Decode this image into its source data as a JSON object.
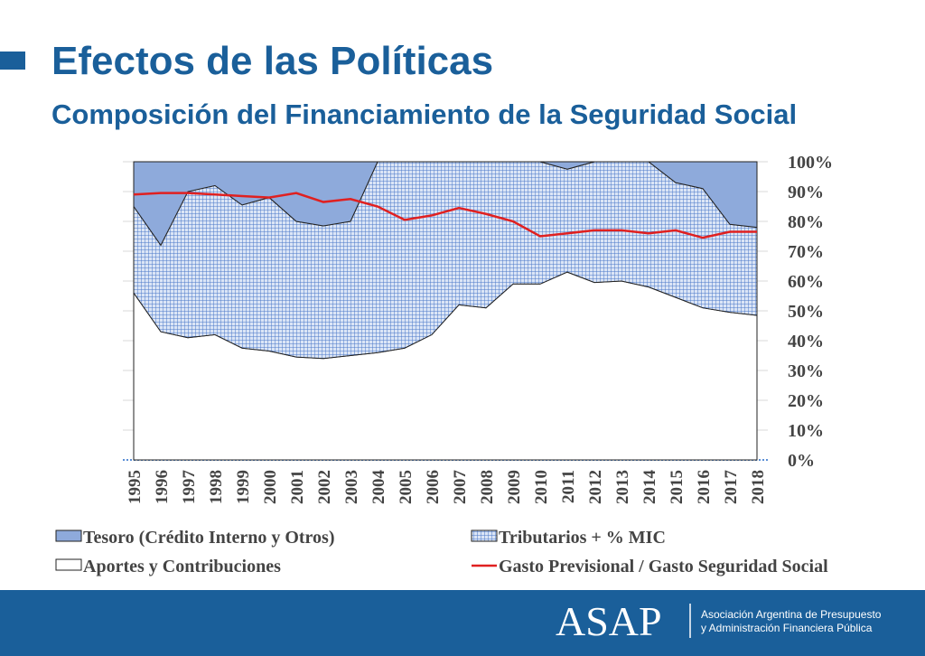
{
  "header": {
    "title": "Efectos de las Políticas",
    "subtitle": "Composición del Financiamiento de la Seguridad Social"
  },
  "chart_data": {
    "type": "stacked_area",
    "categories": [
      "1995",
      "1996",
      "1997",
      "1998",
      "1999",
      "2000",
      "2001",
      "2002",
      "2003",
      "2004",
      "2005",
      "2006",
      "2007",
      "2008",
      "2009",
      "2010",
      "2011",
      "2012",
      "2013",
      "2014",
      "2015",
      "2016",
      "2017",
      "2018"
    ],
    "series": [
      {
        "name": "Aportes y Contribuciones",
        "color": "#ffffff",
        "values": [
          56,
          43,
          41,
          42,
          37.5,
          36.5,
          34.5,
          34,
          35,
          36,
          37.5,
          42,
          52,
          51,
          59,
          59,
          63,
          59.5,
          60,
          58,
          54.5,
          51,
          49.5,
          48.5
        ]
      },
      {
        "name": "Tributarios + % MIC",
        "color": "#4a78c8",
        "hatch": true,
        "values": [
          29,
          29,
          49,
          50,
          48,
          51.5,
          45.5,
          44.5,
          45,
          64,
          62.5,
          58,
          48,
          49,
          41,
          41,
          34.5,
          40.5,
          40,
          42,
          38.5,
          40,
          29.5,
          29.5
        ]
      },
      {
        "name": "Tesoro (Crédito Interno y Otros)",
        "color": "#8eaadb",
        "values": [
          15,
          28,
          10,
          8,
          14.5,
          12,
          20,
          21.5,
          20,
          0,
          0,
          0,
          0,
          0,
          0,
          0,
          2.5,
          0,
          0,
          0,
          7,
          9,
          21,
          22
        ]
      }
    ],
    "line": {
      "name": "Gasto Previsional  / Gasto Seguridad Social",
      "color": "#e02020",
      "values": [
        89,
        89.5,
        89.5,
        89,
        88.5,
        88,
        89.5,
        86.5,
        87.5,
        85,
        80.5,
        82,
        84.5,
        82.5,
        80,
        75,
        76,
        77,
        77,
        76,
        77,
        74.5,
        76.5,
        76.5
      ]
    },
    "ylim": [
      0,
      100
    ],
    "yticks": [
      {
        "value": 0,
        "label": "0%"
      },
      {
        "value": 10,
        "label": "10%"
      },
      {
        "value": 20,
        "label": "20%"
      },
      {
        "value": 30,
        "label": "30%"
      },
      {
        "value": 40,
        "label": "40%"
      },
      {
        "value": 50,
        "label": "50%"
      },
      {
        "value": 60,
        "label": "60%"
      },
      {
        "value": 70,
        "label": "70%"
      },
      {
        "value": 80,
        "label": "80%"
      },
      {
        "value": 90,
        "label": "90%"
      },
      {
        "value": 100,
        "label": "100%"
      }
    ],
    "grid": true
  },
  "footer": {
    "logo": "ASAP",
    "line1": "Asociación Argentina de Presupuesto",
    "line2": "y Administración Financiera Pública"
  }
}
